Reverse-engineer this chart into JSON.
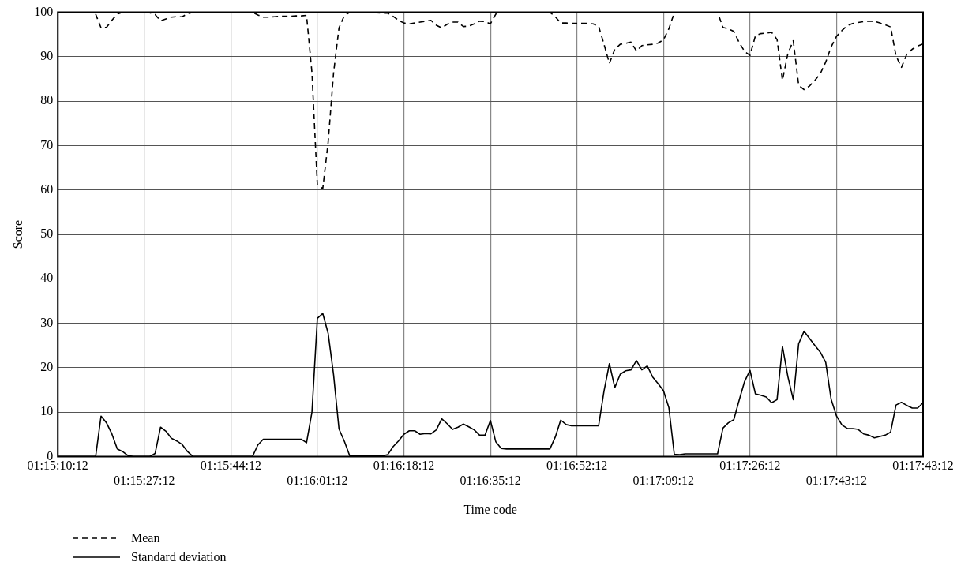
{
  "chart_data": {
    "type": "line",
    "xlabel": "Time code",
    "ylabel": "Score",
    "categories": [
      "01:15:10:12",
      null,
      null,
      null,
      null,
      null,
      null,
      null,
      null,
      null,
      null,
      null,
      null,
      null,
      null,
      null,
      "01:15:27:12",
      null,
      null,
      null,
      null,
      null,
      null,
      null,
      null,
      null,
      null,
      null,
      null,
      null,
      null,
      null,
      "01:15:44:12",
      null,
      null,
      null,
      null,
      null,
      null,
      null,
      null,
      null,
      null,
      null,
      null,
      null,
      null,
      null,
      "01:16:01:12",
      null,
      null,
      null,
      null,
      null,
      null,
      null,
      null,
      null,
      null,
      null,
      null,
      null,
      null,
      null,
      "01:16:18:12",
      null,
      null,
      null,
      null,
      null,
      null,
      null,
      null,
      null,
      null,
      null,
      null,
      null,
      null,
      null,
      "01:16:35:12",
      null,
      null,
      null,
      null,
      null,
      null,
      null,
      null,
      null,
      null,
      null,
      null,
      null,
      null,
      null,
      "01:16:52:12",
      null,
      null,
      null,
      null,
      null,
      null,
      null,
      null,
      null,
      null,
      null,
      null,
      null,
      null,
      null,
      "01:17:09:12",
      null,
      null,
      null,
      null,
      null,
      null,
      null,
      null,
      null,
      null,
      null,
      null,
      null,
      null,
      null,
      "01:17:26:12",
      null,
      null,
      null,
      null,
      null,
      null,
      null,
      null,
      null,
      null,
      null,
      null,
      null,
      null,
      null,
      "01:17:43:12",
      null,
      null,
      null,
      null,
      null,
      null,
      null,
      null,
      null,
      null,
      null,
      null,
      null,
      null,
      null,
      "01:17:43:12"
    ],
    "ylim": [
      0,
      100
    ],
    "yticks": [
      0,
      10,
      20,
      30,
      40,
      50,
      60,
      70,
      80,
      90,
      100
    ],
    "grid": true,
    "legend": "bottom left",
    "marker": "none",
    "series": [
      {
        "name": "Mean",
        "color": "#000000",
        "line_style": "dashed",
        "values": [
          100,
          100,
          100,
          100,
          100,
          100,
          100,
          99.6,
          96.5,
          96.6,
          98.2,
          99.6,
          100,
          100,
          100,
          100,
          100,
          99.9,
          99.5,
          98.1,
          98.5,
          98.9,
          99,
          99,
          99.7,
          100,
          100,
          100,
          100,
          100,
          100,
          100,
          100,
          100,
          100,
          100,
          100,
          99.4,
          98.9,
          98.9,
          99,
          99.1,
          99.1,
          99.1,
          99.2,
          99.2,
          99.3,
          86.4,
          61.1,
          60.3,
          70.8,
          86.4,
          96.5,
          99.3,
          100,
          100,
          100,
          100,
          99.9,
          99.9,
          99.8,
          99.8,
          99.1,
          98.2,
          97.6,
          97.4,
          97.6,
          97.8,
          98,
          98.2,
          97.1,
          96.5,
          97.3,
          97.8,
          97.8,
          96.8,
          96.9,
          97.4,
          98,
          97.9,
          97.4,
          99.6,
          100,
          100,
          100,
          100,
          100,
          100,
          100,
          100,
          100,
          100,
          99,
          97.6,
          97.6,
          97.5,
          97.5,
          97.5,
          97.5,
          97.4,
          96.9,
          92.8,
          88.5,
          91.7,
          92.8,
          93,
          93.3,
          91.3,
          92.5,
          92.7,
          92.8,
          93.1,
          93.8,
          96.3,
          99.9,
          100,
          100,
          100,
          100,
          100,
          100,
          100,
          100,
          96.6,
          96.3,
          95.7,
          93.2,
          91.2,
          90.3,
          94.7,
          95.2,
          95.3,
          95.5,
          93.9,
          84.7,
          90.7,
          93.6,
          83.6,
          82.6,
          83.4,
          84.7,
          86.2,
          88.8,
          92.2,
          94.6,
          95.9,
          97,
          97.5,
          97.7,
          97.9,
          98,
          98,
          97.6,
          97.2,
          96.7,
          90.2,
          87.6,
          90.6,
          91.7,
          92.4,
          92.9
        ]
      },
      {
        "name": "Standard deviation",
        "color": "#000000",
        "line_style": "solid",
        "values": [
          0,
          0,
          0,
          0,
          0,
          0,
          0,
          0,
          9.1,
          7.6,
          5.1,
          1.7,
          1.1,
          0.2,
          0,
          0,
          0,
          0,
          0.7,
          6.6,
          5.7,
          4.1,
          3.5,
          2.7,
          1.1,
          0,
          0,
          0,
          0,
          0,
          0,
          0,
          0,
          0,
          0,
          0,
          0,
          2.6,
          3.9,
          3.9,
          3.9,
          3.9,
          3.9,
          3.9,
          3.9,
          3.9,
          3.1,
          10,
          31.1,
          32.2,
          27.7,
          18.4,
          6.2,
          3.4,
          0.1,
          0.1,
          0.2,
          0.2,
          0.2,
          0.1,
          0.1,
          0.4,
          2.2,
          3.5,
          5,
          5.8,
          5.8,
          5,
          5.2,
          5.1,
          6,
          8.5,
          7.4,
          6.1,
          6.6,
          7.3,
          6.7,
          6,
          4.8,
          4.8,
          8.1,
          3.3,
          1.8,
          1.7,
          1.7,
          1.7,
          1.7,
          1.7,
          1.7,
          1.7,
          1.7,
          1.7,
          4.4,
          8.2,
          7.2,
          6.9,
          6.9,
          6.9,
          6.9,
          6.9,
          6.9,
          14.7,
          20.9,
          15.5,
          18.5,
          19.3,
          19.5,
          21.6,
          19.5,
          20.4,
          17.9,
          16.4,
          14.8,
          11,
          0.5,
          0.4,
          0.6,
          0.6,
          0.6,
          0.6,
          0.6,
          0.6,
          0.6,
          6.4,
          7.6,
          8.3,
          12.7,
          16.9,
          19.4,
          14.1,
          13.8,
          13.4,
          12.1,
          12.8,
          24.8,
          18,
          12.8,
          25.4,
          28.2,
          26.6,
          25,
          23.5,
          21.2,
          12.9,
          9.1,
          7.1,
          6.3,
          6.3,
          6.1,
          5.1,
          4.8,
          4.2,
          4.5,
          4.8,
          5.5,
          11.6,
          12.2,
          11.5,
          10.9,
          10.9,
          12.1
        ]
      }
    ]
  }
}
